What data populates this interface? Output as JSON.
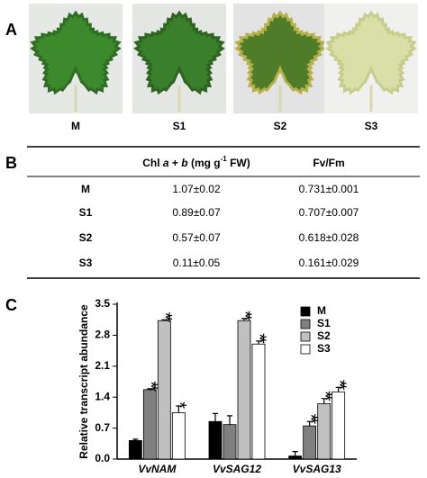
{
  "panel_a": {
    "label": "A",
    "leaves": [
      "M",
      "S1",
      "S2",
      "S3"
    ]
  },
  "panel_b": {
    "label": "B",
    "header": {
      "chl": [
        "Chl ",
        "a",
        " + ",
        "b",
        " (mg g",
        "-1",
        " FW)"
      ],
      "fvfm": "Fv/Fm"
    },
    "rows": [
      [
        "M",
        "1.07±0.02",
        "0.731±0.001"
      ],
      [
        "S1",
        "0.89±0.07",
        "0.707±0.007"
      ],
      [
        "S2",
        "0.57±0.07",
        "0.618±0.028"
      ],
      [
        "S3",
        "0.11±0.05",
        "0.161±0.029"
      ]
    ]
  },
  "panel_c": {
    "label": "C"
  },
  "chart_data": {
    "type": "bar",
    "y_label": "Relative transcript abundance",
    "categories": [
      "VvNAM",
      "VvSAG12",
      "VvSAG13"
    ],
    "series": [
      {
        "name": "M",
        "color": "#000000",
        "values": [
          0.42,
          0.85,
          0.07
        ],
        "errors": [
          0.03,
          0.18,
          0.1
        ],
        "significance": [
          null,
          null,
          null
        ]
      },
      {
        "name": "S1",
        "color": "#808080",
        "values": [
          1.57,
          0.78,
          0.75
        ],
        "errors": [
          0.02,
          0.2,
          0.1
        ],
        "significance": [
          "**",
          null,
          "**"
        ]
      },
      {
        "name": "S2",
        "color": "#c0c0c0",
        "values": [
          3.13,
          3.13,
          1.25
        ],
        "errors": [
          0.02,
          0.05,
          0.12
        ],
        "significance": [
          "**",
          "**",
          "**"
        ]
      },
      {
        "name": "S3",
        "color": "#ffffff",
        "values": [
          1.05,
          2.6,
          1.52
        ],
        "errors": [
          0.15,
          0.07,
          0.1
        ],
        "significance": [
          "*",
          "**",
          "**"
        ]
      }
    ],
    "ylim": [
      0,
      3.5
    ],
    "yticks": [
      {
        "value": 0,
        "label": "0.0"
      },
      0.7,
      1.4,
      2.1,
      2.8,
      3.5
    ],
    "legend": "top-right"
  }
}
